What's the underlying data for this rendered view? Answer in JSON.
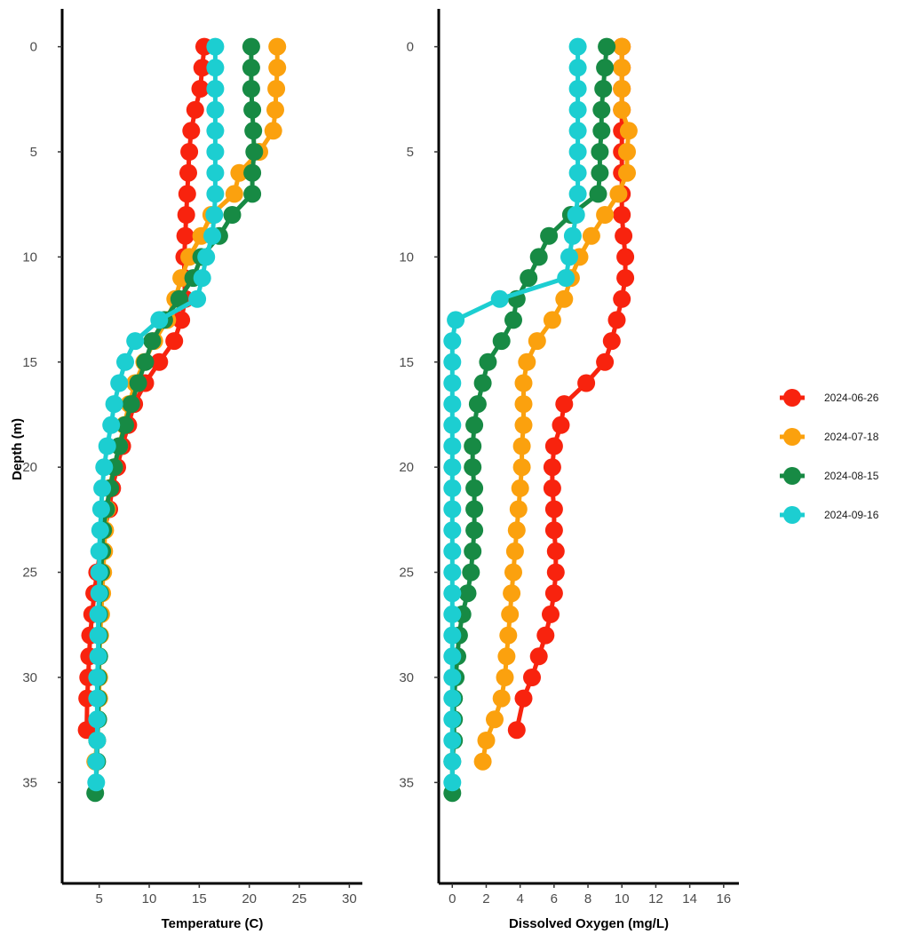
{
  "colors": {
    "2024-06-26": "#F8230E",
    "2024-07-18": "#FBA10E",
    "2024-08-15": "#178A44",
    "2024-09-16": "#1CCED1"
  },
  "shared_y_axis": {
    "label": "Depth (m)",
    "reversed": true,
    "range": [
      -1.8,
      39.8
    ],
    "ticks": [
      0,
      5,
      10,
      15,
      20,
      25,
      30,
      35
    ]
  },
  "legend": {
    "placement": "right",
    "entries": [
      "2024-06-26",
      "2024-07-18",
      "2024-08-15",
      "2024-09-16"
    ]
  },
  "chart_data": [
    {
      "type": "line",
      "xlabel": "Temperature (C)",
      "ylabel": "Depth (m)",
      "xlim": [
        1.3,
        31.3
      ],
      "ylim": [
        -1.8,
        39.8
      ],
      "x_ticks": [
        5,
        10,
        15,
        20,
        25,
        30
      ],
      "y_ticks": [
        0,
        5,
        10,
        15,
        20,
        25,
        30,
        35
      ],
      "grid": false,
      "series": [
        {
          "name": "2024-06-26",
          "x": [
            15.5,
            15.3,
            15.1,
            14.6,
            14.2,
            14.0,
            13.9,
            13.8,
            13.7,
            13.6,
            13.5,
            13.5,
            13.6,
            13.2,
            12.5,
            11.0,
            9.6,
            8.5,
            7.9,
            7.3,
            6.8,
            6.3,
            6.0,
            5.5,
            5.1,
            4.8,
            4.5,
            4.3,
            4.1,
            4.0,
            3.9,
            3.8,
            3.75
          ],
          "y": [
            0,
            1,
            2,
            3,
            4,
            5,
            6,
            7,
            8,
            9,
            10,
            11,
            12,
            13,
            14,
            15,
            16,
            17,
            18,
            19,
            20,
            21,
            22,
            23,
            24,
            25,
            26,
            27,
            28,
            29,
            30,
            31,
            32.5
          ]
        },
        {
          "name": "2024-07-18",
          "x": [
            22.8,
            22.8,
            22.7,
            22.6,
            22.4,
            21.0,
            19.0,
            18.5,
            16.2,
            15.2,
            14.0,
            13.2,
            12.6,
            11.8,
            10.5,
            9.5,
            8.6,
            8.0,
            7.5,
            7.0,
            6.5,
            6.0,
            5.8,
            5.6,
            5.5,
            5.4,
            5.3,
            5.2,
            5.1,
            5.0,
            5.0,
            5.0,
            4.9,
            4.8,
            4.6
          ],
          "y": [
            0,
            1,
            2,
            3,
            4,
            5,
            6,
            7,
            8,
            9,
            10,
            11,
            12,
            13,
            14,
            15,
            16,
            17,
            18,
            19,
            20,
            21,
            22,
            23,
            24,
            25,
            26,
            27,
            28,
            29,
            30,
            31,
            32,
            33,
            34
          ]
        },
        {
          "name": "2024-08-15",
          "x": [
            20.2,
            20.2,
            20.2,
            20.3,
            20.4,
            20.5,
            20.3,
            20.3,
            18.3,
            17.0,
            15.2,
            14.4,
            13.0,
            11.5,
            10.3,
            9.6,
            8.9,
            8.2,
            7.6,
            7.0,
            6.5,
            6.1,
            5.7,
            5.4,
            5.3,
            5.2,
            5.1,
            5.0,
            5.0,
            5.0,
            4.9,
            4.9,
            4.9,
            4.8,
            4.8,
            4.6
          ],
          "y": [
            0,
            1,
            2,
            3,
            4,
            5,
            6,
            7,
            8,
            9,
            10,
            11,
            12,
            13,
            14,
            15,
            16,
            17,
            18,
            19,
            20,
            21,
            22,
            23,
            24,
            25,
            26,
            27,
            28,
            29,
            30,
            31,
            32,
            33,
            34,
            35.5
          ]
        },
        {
          "name": "2024-09-16",
          "x": [
            16.6,
            16.6,
            16.6,
            16.6,
            16.6,
            16.6,
            16.6,
            16.6,
            16.5,
            16.3,
            15.7,
            15.3,
            14.8,
            11.0,
            8.6,
            7.6,
            7.0,
            6.5,
            6.2,
            5.8,
            5.5,
            5.3,
            5.2,
            5.1,
            5.0,
            5.0,
            5.0,
            4.9,
            4.9,
            4.9,
            4.8,
            4.8,
            4.8,
            4.8,
            4.7,
            4.7
          ],
          "y": [
            0,
            1,
            2,
            3,
            4,
            5,
            6,
            7,
            8,
            9,
            10,
            11,
            12,
            13,
            14,
            15,
            16,
            17,
            18,
            19,
            20,
            21,
            22,
            23,
            24,
            25,
            26,
            27,
            28,
            29,
            30,
            31,
            32,
            33,
            34,
            35
          ]
        }
      ]
    },
    {
      "type": "line",
      "xlabel": "Dissolved Oxygen (mg/L)",
      "ylabel": "Depth (m)",
      "xlim": [
        -0.8,
        16.9
      ],
      "ylim": [
        -1.8,
        39.8
      ],
      "x_ticks": [
        0,
        2,
        4,
        6,
        8,
        10,
        12,
        14,
        16
      ],
      "y_ticks": [
        0,
        5,
        10,
        15,
        20,
        25,
        30,
        35
      ],
      "grid": false,
      "series": [
        {
          "name": "2024-06-26",
          "x": [
            10.0,
            10.0,
            10.0,
            10.0,
            10.0,
            10.0,
            10.0,
            10.0,
            10.0,
            10.1,
            10.2,
            10.2,
            10.0,
            9.7,
            9.4,
            9.0,
            7.9,
            6.6,
            6.4,
            6.0,
            5.9,
            5.9,
            6.0,
            6.0,
            6.1,
            6.1,
            6.0,
            5.8,
            5.5,
            5.1,
            4.7,
            4.2,
            3.8
          ],
          "y": [
            0,
            1,
            2,
            3,
            4,
            5,
            6,
            7,
            8,
            9,
            10,
            11,
            12,
            13,
            14,
            15,
            16,
            17,
            18,
            19,
            20,
            21,
            22,
            23,
            24,
            25,
            26,
            27,
            28,
            29,
            30,
            31,
            32.5
          ]
        },
        {
          "name": "2024-07-18",
          "x": [
            10.0,
            10.0,
            10.0,
            10.0,
            10.4,
            10.3,
            10.3,
            9.8,
            9.0,
            8.2,
            7.5,
            7.0,
            6.6,
            5.9,
            5.0,
            4.4,
            4.2,
            4.2,
            4.2,
            4.1,
            4.1,
            4.0,
            3.9,
            3.8,
            3.7,
            3.6,
            3.5,
            3.4,
            3.3,
            3.2,
            3.1,
            2.9,
            2.5,
            2.0,
            1.8
          ],
          "y": [
            0,
            1,
            2,
            3,
            4,
            5,
            6,
            7,
            8,
            9,
            10,
            11,
            12,
            13,
            14,
            15,
            16,
            17,
            18,
            19,
            20,
            21,
            22,
            23,
            24,
            25,
            26,
            27,
            28,
            29,
            30,
            31,
            32,
            33,
            34
          ]
        },
        {
          "name": "2024-08-15",
          "x": [
            9.1,
            9.0,
            8.9,
            8.8,
            8.8,
            8.7,
            8.7,
            8.6,
            7.0,
            5.7,
            5.1,
            4.5,
            3.8,
            3.6,
            2.9,
            2.1,
            1.8,
            1.5,
            1.3,
            1.2,
            1.2,
            1.3,
            1.3,
            1.3,
            1.2,
            1.1,
            0.9,
            0.6,
            0.4,
            0.3,
            0.2,
            0.1,
            0.1,
            0.1,
            0.0,
            0.0
          ],
          "y": [
            0,
            1,
            2,
            3,
            4,
            5,
            6,
            7,
            8,
            9,
            10,
            11,
            12,
            13,
            14,
            15,
            16,
            17,
            18,
            19,
            20,
            21,
            22,
            23,
            24,
            25,
            26,
            27,
            28,
            29,
            30,
            31,
            32,
            33,
            34,
            35.5
          ]
        },
        {
          "name": "2024-09-16",
          "x": [
            7.4,
            7.4,
            7.4,
            7.4,
            7.4,
            7.4,
            7.4,
            7.4,
            7.3,
            7.1,
            6.9,
            6.7,
            2.8,
            0.2,
            0.0,
            0.0,
            0.0,
            0.0,
            0.0,
            0.0,
            0.0,
            0.0,
            0.0,
            0.0,
            0.0,
            0.0,
            0.0,
            0.0,
            0.0,
            0.0,
            0.0,
            0.0,
            0.0,
            0.0,
            0.0,
            0.0
          ],
          "y": [
            0,
            1,
            2,
            3,
            4,
            5,
            6,
            7,
            8,
            9,
            10,
            11,
            12,
            13,
            14,
            15,
            16,
            17,
            18,
            19,
            20,
            21,
            22,
            23,
            24,
            25,
            26,
            27,
            28,
            29,
            30,
            31,
            32,
            33,
            34,
            35
          ]
        }
      ]
    }
  ]
}
